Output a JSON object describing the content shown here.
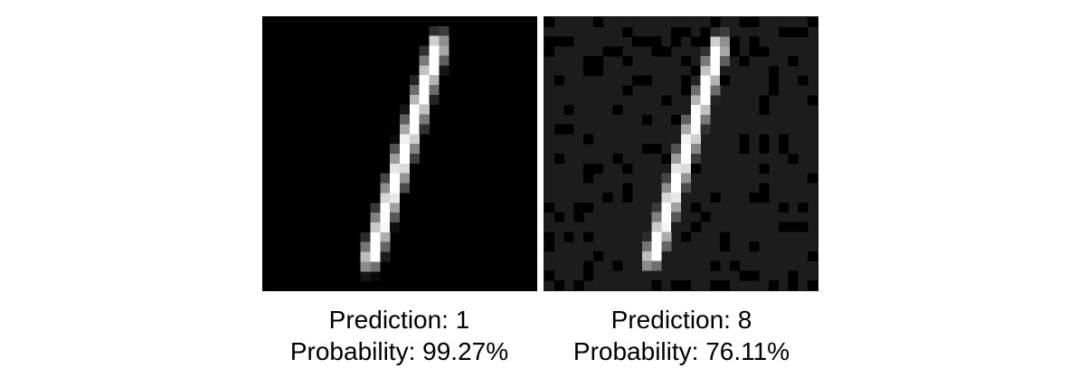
{
  "panels": [
    {
      "id": "original",
      "prediction_label": "Prediction: 1",
      "probability_label": "Probability: 99.27%",
      "noise": false,
      "background_color": "#000000"
    },
    {
      "id": "adversarial",
      "prediction_label": "Prediction: 8",
      "probability_label": "Probability: 76.11%",
      "noise": true,
      "background_color": "#1c1c1c"
    }
  ]
}
